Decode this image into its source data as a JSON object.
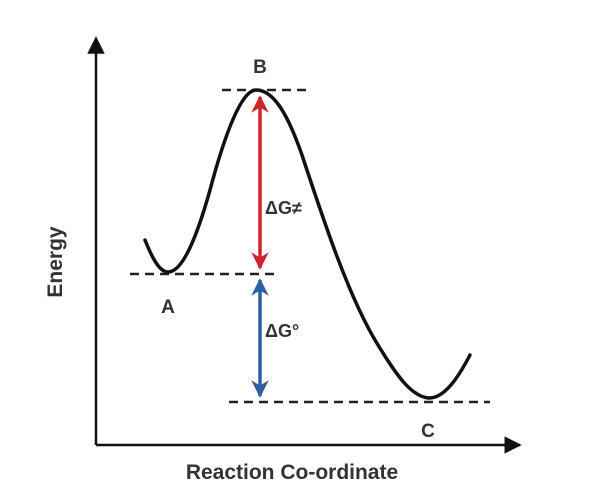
{
  "diagram": {
    "x_axis_label": "Reaction Co-ordinate",
    "y_axis_label": "Energy",
    "points": {
      "a": "A",
      "b": "B",
      "c": "C"
    },
    "activation_energy_label": "ΔG≠",
    "free_energy_label": "ΔG°"
  },
  "colors": {
    "curve": "#111111",
    "axis": "#111111",
    "dashed_lines": "#222222",
    "activation_arrow": "#d2232a",
    "free_energy_arrow": "#2e5f9e",
    "text": "#333333"
  }
}
